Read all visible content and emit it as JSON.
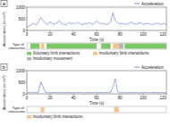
{
  "chart_data": [
    {
      "type": "line",
      "panel": "a",
      "x_label": "Time (s)",
      "y_label": "|Acceleration| (mm/s²)",
      "x": [
        0,
        2,
        4,
        6,
        8,
        10,
        12,
        14,
        16,
        18,
        20,
        22,
        24,
        26,
        28,
        30,
        32,
        34,
        36,
        38,
        40,
        42,
        44,
        46,
        48,
        50,
        52,
        54,
        56,
        58,
        60,
        62,
        64,
        66,
        68,
        70,
        72,
        74,
        76,
        78,
        80,
        82,
        84,
        86,
        88,
        90,
        92,
        94,
        96,
        98,
        100,
        102,
        104,
        106,
        108,
        110,
        112,
        114,
        116,
        118,
        120
      ],
      "series": [
        {
          "name": "Acceleration",
          "color": "#5b6fd8",
          "values": [
            120,
            180,
            260,
            310,
            220,
            350,
            560,
            420,
            300,
            250,
            380,
            290,
            270,
            330,
            410,
            300,
            260,
            240,
            350,
            280,
            310,
            290,
            360,
            270,
            250,
            300,
            280,
            340,
            260,
            290,
            410,
            320,
            280,
            300,
            260,
            270,
            350,
            760,
            420,
            330,
            280,
            300,
            270,
            260,
            310,
            350,
            290,
            270,
            300,
            330,
            260,
            280,
            300,
            270,
            250,
            290,
            310,
            280,
            260,
            300,
            240
          ]
        }
      ],
      "xlim": [
        0,
        120
      ],
      "xticks": [
        0,
        20,
        40,
        60,
        80,
        100,
        120
      ],
      "ylim": [
        0,
        1000
      ],
      "yticks": [
        0,
        500,
        1000
      ],
      "interactions": {
        "label": "Type of interaction",
        "kinds": [
          {
            "name": "Voluntary limb interactions",
            "color": "#7ec86a"
          },
          {
            "name": "Involuntary limb interactions",
            "color": "#f5c28f"
          },
          {
            "name": "Involuntary movement",
            "color": "#b4b4b4"
          }
        ],
        "intervals": [
          {
            "kind": 0,
            "start": 3,
            "end": 11
          },
          {
            "kind": 1,
            "start": 12,
            "end": 15
          },
          {
            "kind": 0,
            "start": 17,
            "end": 60
          },
          {
            "kind": 0,
            "start": 64,
            "end": 72
          },
          {
            "kind": 1,
            "start": 74,
            "end": 79
          },
          {
            "kind": 2,
            "start": 79,
            "end": 83
          },
          {
            "kind": 0,
            "start": 84,
            "end": 120
          }
        ]
      }
    },
    {
      "type": "line",
      "panel": "b",
      "x_label": "Time (s)",
      "y_label": "|Acceleration| (mm/s²)",
      "x": [
        0,
        2,
        4,
        6,
        8,
        10,
        12,
        14,
        16,
        18,
        20,
        22,
        24,
        26,
        28,
        30,
        32,
        34,
        36,
        38,
        40,
        42,
        44,
        46,
        48,
        50,
        52,
        54,
        56,
        58,
        60,
        62,
        64,
        66,
        68,
        70,
        72,
        74,
        76,
        78,
        80,
        82,
        84,
        86,
        88,
        90,
        92,
        94,
        96,
        98,
        100,
        102,
        104,
        106,
        108,
        110,
        112,
        114,
        116,
        118,
        120
      ],
      "series": [
        {
          "name": "Acceleration",
          "color": "#5b6fd8",
          "values": [
            40,
            60,
            50,
            70,
            55,
            60,
            520,
            310,
            60,
            50,
            45,
            60,
            55,
            50,
            65,
            60,
            50,
            55,
            60,
            45,
            50,
            60,
            55,
            65,
            50,
            45,
            60,
            55,
            50,
            60,
            55,
            50,
            60,
            45,
            55,
            60,
            70,
            300,
            640,
            90,
            60,
            50,
            55,
            45,
            60,
            50,
            55,
            60,
            50,
            45,
            55,
            60,
            50,
            45,
            55,
            60,
            50,
            55,
            60,
            50,
            45
          ]
        }
      ],
      "xlim": [
        0,
        120
      ],
      "xticks": [
        0,
        20,
        40,
        60,
        80,
        100,
        120
      ],
      "ylim": [
        0,
        1000
      ],
      "yticks": [
        0,
        500,
        1000
      ],
      "interactions": {
        "label": "Type of interaction",
        "kinds": [
          {
            "name": "Involuntary limb interactions",
            "color": "#f5c28f"
          }
        ],
        "intervals": [
          {
            "kind": 0,
            "start": 12,
            "end": 15
          },
          {
            "kind": 0,
            "start": 75,
            "end": 79
          }
        ]
      }
    }
  ]
}
